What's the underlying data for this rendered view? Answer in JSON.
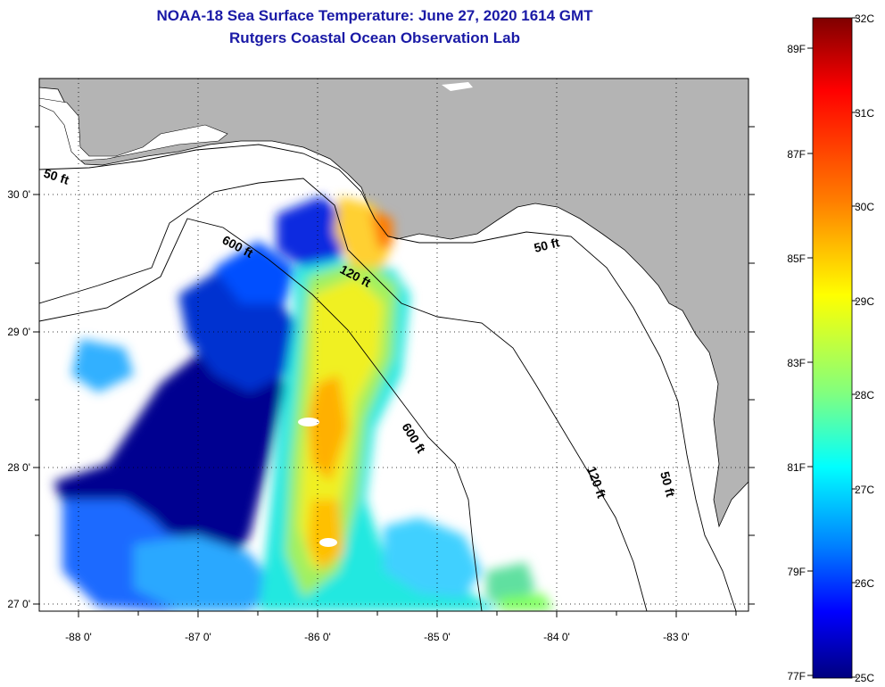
{
  "header": {
    "title_line1": "NOAA-18 Sea Surface Temperature:  June 27, 2020 1614 GMT",
    "title_line2": "Rutgers Coastal Ocean Observation Lab"
  },
  "map": {
    "lon_ticks": [
      "-88 0'",
      "-87 0'",
      "-86 0'",
      "-85 0'",
      "-84 0'",
      "-83 0'"
    ],
    "lat_ticks": [
      "30 0'",
      "29 0'",
      "28 0'",
      "27 0'"
    ],
    "contour_labels": [
      "50 ft",
      "600 ft",
      "120 ft",
      "50 ft",
      "600 ft",
      "120 ft",
      "50 ft"
    ],
    "colors": {
      "land": "#b4b4b4",
      "no_data": "#ffffff",
      "contour": "#000000"
    }
  },
  "colorbar": {
    "celsius_labels": [
      "32C",
      "31C",
      "30C",
      "29C",
      "28C",
      "27C",
      "26C",
      "25C"
    ],
    "fahrenheit_labels": [
      "89F",
      "87F",
      "85F",
      "83F",
      "81F",
      "79F",
      "77F"
    ],
    "gradient_colors": [
      "#7f0000",
      "#ff0000",
      "#ff7f00",
      "#ffff00",
      "#7fff7f",
      "#00ffff",
      "#007fff",
      "#0000ff",
      "#00007f"
    ]
  }
}
